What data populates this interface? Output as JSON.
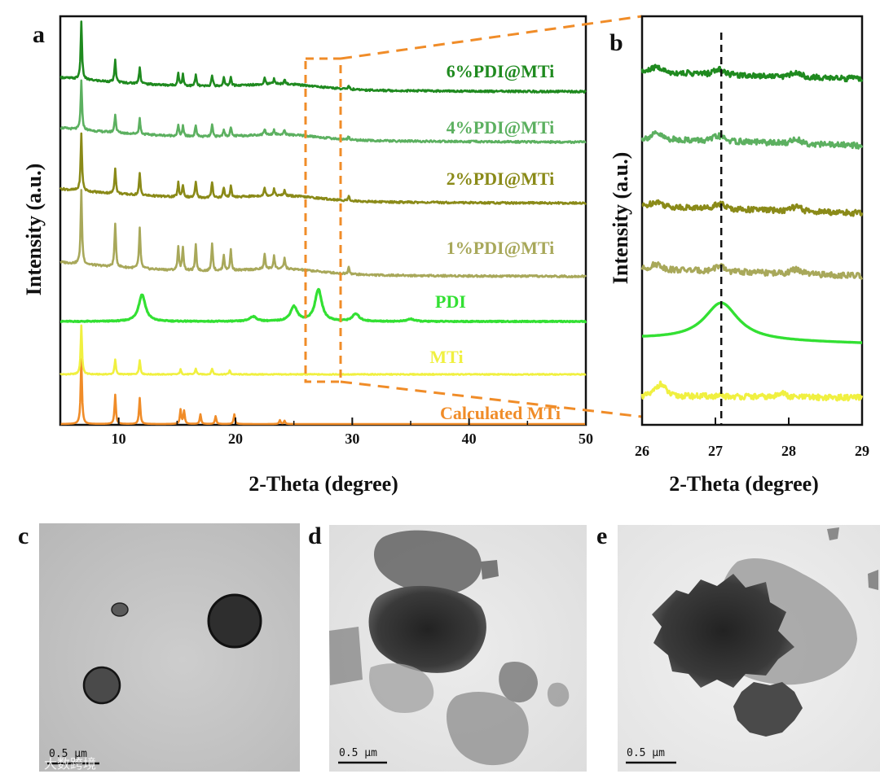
{
  "panel_letters": {
    "a": "a",
    "b": "b",
    "c": "c",
    "d": "d",
    "e": "e"
  },
  "colors": {
    "calculated": "#f08c28",
    "mti": "#f0f040",
    "pdi": "#33e033",
    "p1": "#a8a85a",
    "p2": "#8a8a18",
    "p4": "#5cb060",
    "p6": "#1f8a1f",
    "zoom_box": "#f08c28",
    "grid_bg": "#d0d0d0"
  },
  "chart_data": [
    {
      "type": "line",
      "panel": "a",
      "xlabel": "2-Theta (degree)",
      "ylabel": "Intensity (a.u.)",
      "xlim": [
        5,
        50
      ],
      "x_ticks": [
        10,
        20,
        30,
        40,
        50
      ],
      "y_ticks": "none",
      "legend": "labels placed on the right above each curve",
      "zoom_window": [
        26,
        29
      ],
      "series": [
        {
          "name": "Calculated MTi",
          "color": "#f08c28",
          "peaks": [
            [
              6.8,
              1.0
            ],
            [
              9.7,
              0.45
            ],
            [
              11.8,
              0.4
            ],
            [
              15.3,
              0.22
            ],
            [
              15.6,
              0.2
            ],
            [
              17.0,
              0.15
            ],
            [
              18.3,
              0.12
            ],
            [
              19.9,
              0.15
            ],
            [
              23.8,
              0.06
            ],
            [
              24.2,
              0.05
            ]
          ]
        },
        {
          "name": "MTi",
          "color": "#f0f040",
          "peaks": [
            [
              6.8,
              1.0
            ],
            [
              9.7,
              0.3
            ],
            [
              11.8,
              0.3
            ],
            [
              15.3,
              0.1
            ],
            [
              16.6,
              0.12
            ],
            [
              18.0,
              0.12
            ],
            [
              19.5,
              0.08
            ]
          ]
        },
        {
          "name": "PDI",
          "color": "#33e033",
          "peaks": [
            [
              12.0,
              0.55
            ],
            [
              21.5,
              0.1
            ],
            [
              25.0,
              0.3
            ],
            [
              27.1,
              0.65
            ],
            [
              30.3,
              0.15
            ],
            [
              35.0,
              0.05
            ]
          ]
        },
        {
          "name": "1%PDI@MTi",
          "color": "#a8a85a",
          "peaks": [
            [
              6.8,
              1.0
            ],
            [
              9.7,
              0.6
            ],
            [
              11.8,
              0.55
            ],
            [
              15.1,
              0.32
            ],
            [
              15.5,
              0.32
            ],
            [
              16.6,
              0.35
            ],
            [
              18.0,
              0.38
            ],
            [
              19.0,
              0.22
            ],
            [
              19.6,
              0.28
            ],
            [
              22.5,
              0.2
            ],
            [
              23.3,
              0.18
            ],
            [
              24.2,
              0.15
            ],
            [
              29.7,
              0.1
            ]
          ]
        },
        {
          "name": "2%PDI@MTi",
          "color": "#8a8a18",
          "peaks": [
            [
              6.8,
              1.0
            ],
            [
              9.7,
              0.45
            ],
            [
              11.8,
              0.38
            ],
            [
              15.1,
              0.25
            ],
            [
              15.5,
              0.22
            ],
            [
              16.6,
              0.28
            ],
            [
              18.0,
              0.28
            ],
            [
              19.0,
              0.18
            ],
            [
              19.6,
              0.2
            ],
            [
              22.5,
              0.14
            ],
            [
              23.3,
              0.12
            ],
            [
              24.2,
              0.1
            ],
            [
              29.7,
              0.08
            ]
          ]
        },
        {
          "name": "4%PDI@MTi",
          "color": "#5cb060",
          "peaks": [
            [
              6.8,
              1.0
            ],
            [
              9.7,
              0.38
            ],
            [
              11.8,
              0.32
            ],
            [
              15.1,
              0.22
            ],
            [
              15.5,
              0.2
            ],
            [
              16.6,
              0.24
            ],
            [
              18.0,
              0.24
            ],
            [
              19.0,
              0.15
            ],
            [
              19.6,
              0.18
            ],
            [
              22.5,
              0.12
            ],
            [
              23.3,
              0.1
            ],
            [
              24.2,
              0.09
            ],
            [
              29.7,
              0.07
            ]
          ]
        },
        {
          "name": "6%PDI@MTi",
          "color": "#1f8a1f",
          "peaks": [
            [
              6.8,
              1.0
            ],
            [
              9.7,
              0.38
            ],
            [
              11.8,
              0.3
            ],
            [
              15.1,
              0.22
            ],
            [
              15.5,
              0.2
            ],
            [
              16.6,
              0.2
            ],
            [
              18.0,
              0.2
            ],
            [
              19.0,
              0.15
            ],
            [
              19.6,
              0.16
            ],
            [
              22.5,
              0.12
            ],
            [
              23.3,
              0.1
            ],
            [
              24.2,
              0.09
            ],
            [
              29.7,
              0.06
            ]
          ]
        }
      ]
    },
    {
      "type": "line",
      "panel": "b",
      "xlabel": "2-Theta (degree)",
      "ylabel": "Intensity (a.u.)",
      "xlim": [
        26,
        29
      ],
      "x_ticks": [
        26,
        27,
        28,
        29
      ],
      "reference_line_x": 27.08,
      "series_order_bottom_to_top": [
        "MTi",
        "PDI",
        "1%PDI@MTi",
        "2%PDI@MTi",
        "4%PDI@MTi",
        "6%PDI@MTi"
      ]
    }
  ],
  "tem_panels": [
    {
      "letter": "c",
      "scale_bar": "0.5 μm"
    },
    {
      "letter": "d",
      "scale_bar": "0.5 μm"
    },
    {
      "letter": "e",
      "scale_bar": "0.5 μm"
    }
  ],
  "watermark": "大数跨境"
}
